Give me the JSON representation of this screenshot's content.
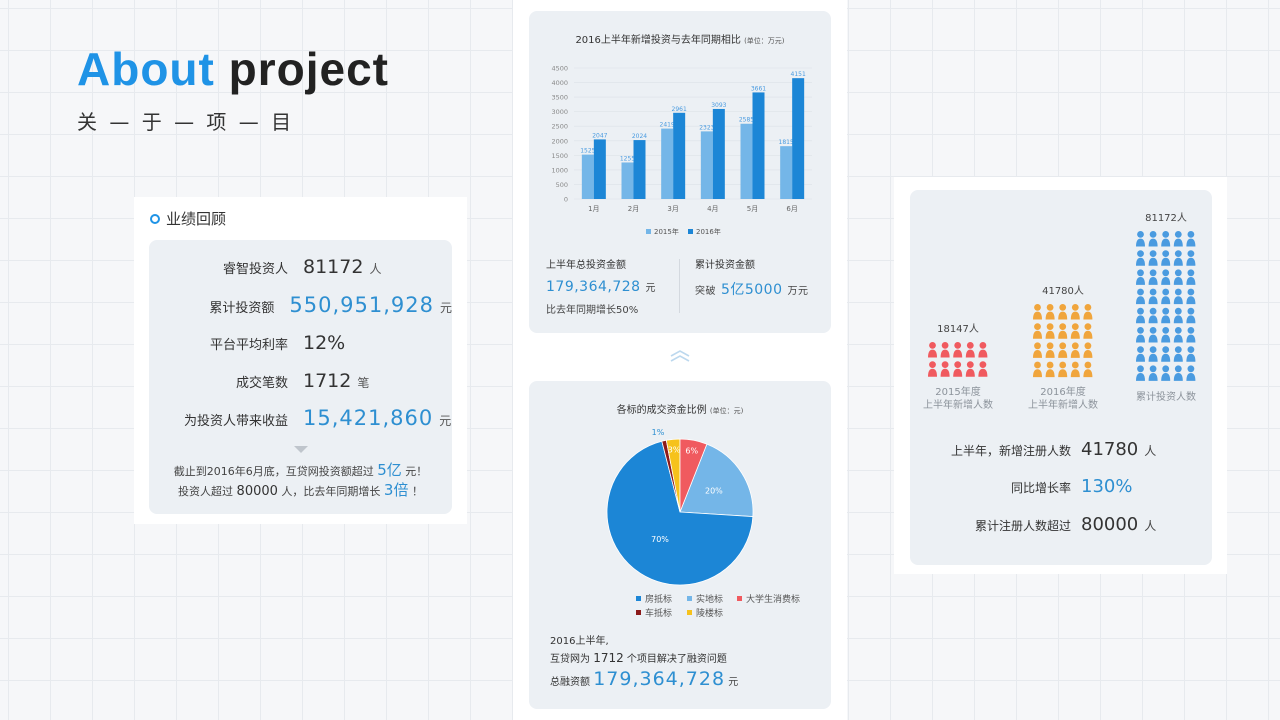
{
  "hero": {
    "title_a": "About",
    "title_b": "project",
    "subtitle": "关 — 于 — 项 — 目"
  },
  "review": {
    "title": "业绩回顾",
    "stats": [
      {
        "label": "睿智投资人",
        "value": "81172",
        "unit": "人"
      },
      {
        "label": "累计投资额",
        "value": "550,951,928",
        "unit": "元"
      },
      {
        "label": "平台平均利率",
        "value": "12%",
        "unit": ""
      },
      {
        "label": "成交笔数",
        "value": "1712",
        "unit": "笔"
      },
      {
        "label": "为投资人带来收益",
        "value": "15,421,860",
        "unit": "元"
      }
    ],
    "note": {
      "l1a": "截止到2016年6月底，互贷网投资额超过",
      "l1b": "5亿",
      "l1c": "元！",
      "l2a": "投资人超过",
      "l2b": "80000",
      "l2c": "人，比去年同期增长",
      "l2d": "3倍",
      "l2e": "！"
    }
  },
  "chart_data": [
    {
      "type": "bar",
      "title": "2016上半年新增投资与去年同期相比",
      "unit_note": "(单位：万元)",
      "categories": [
        "1月",
        "2月",
        "3月",
        "4月",
        "5月",
        "6月"
      ],
      "yticks": [
        "0",
        "500",
        "1000",
        "1500",
        "2000",
        "2500",
        "3000",
        "3500",
        "4000",
        "4500"
      ],
      "ylim": [
        0,
        4500
      ],
      "series": [
        {
          "name": "2015年",
          "color": "#74b6e8",
          "values": [
            1525,
            1255,
            2419,
            2323,
            2585,
            1815
          ]
        },
        {
          "name": "2016年",
          "color": "#1c86d6",
          "values": [
            2047,
            2024,
            2961,
            3093,
            3661,
            4151
          ]
        }
      ],
      "legend": "bottom-center",
      "grid": true
    },
    {
      "type": "pie",
      "title": "各标的成交资金比例",
      "unit_note": "(单位：元)",
      "slices": [
        {
          "name": "房抵标",
          "value": 70,
          "label": "70%",
          "color": "#1c86d6"
        },
        {
          "name": "实地标",
          "value": 20,
          "label": "20%",
          "color": "#74b6e8"
        },
        {
          "name": "大学生消费标",
          "value": 6,
          "label": "6%",
          "color": "#f05a5f"
        },
        {
          "name": "陵楼标",
          "value": 3,
          "label": "3%",
          "color": "#f6c21c"
        },
        {
          "name": "车抵标",
          "value": 1,
          "label": "1%",
          "color": "#8b1a1a"
        }
      ],
      "legend": "bottom-center"
    }
  ],
  "half_summary": {
    "total_label": "上半年总投资金额",
    "total_value": "179,364,728",
    "total_unit": "元",
    "growth": "比去年同期增长50%",
    "cum_label": "累计投资金额",
    "cum_prefix": "突破",
    "cum_value": "5亿5000",
    "cum_unit": "万元"
  },
  "pie_text": {
    "line1": "2016上半年,",
    "line2a": "互贷网为",
    "line2b": "1712",
    "line2c": "个项目解决了融资问题",
    "line3a": "总融资额",
    "line3b": "179,364,728",
    "line3c": "元"
  },
  "people": {
    "groups": [
      {
        "count": "18147人",
        "caption1": "2015年度",
        "caption2": "上半年新增人数",
        "color": "#f05a5f",
        "rows": 2,
        "share": 0.22
      },
      {
        "count": "41780人",
        "caption1": "2016年度",
        "caption2": "上半年新增人数",
        "color": "#f0a53c",
        "rows": 4,
        "share": 0.51
      },
      {
        "count": "81172人",
        "caption1": "累计投资人数",
        "caption2": "",
        "color": "#4a9be0",
        "rows": 8,
        "share": 1.0
      }
    ],
    "stats": [
      {
        "label": "上半年，新增注册人数",
        "value": "41780",
        "unit": "人"
      },
      {
        "label": "同比增长率",
        "value": "130%",
        "unit": ""
      },
      {
        "label": "累计注册人数超过",
        "value": "80000",
        "unit": "人"
      }
    ]
  }
}
